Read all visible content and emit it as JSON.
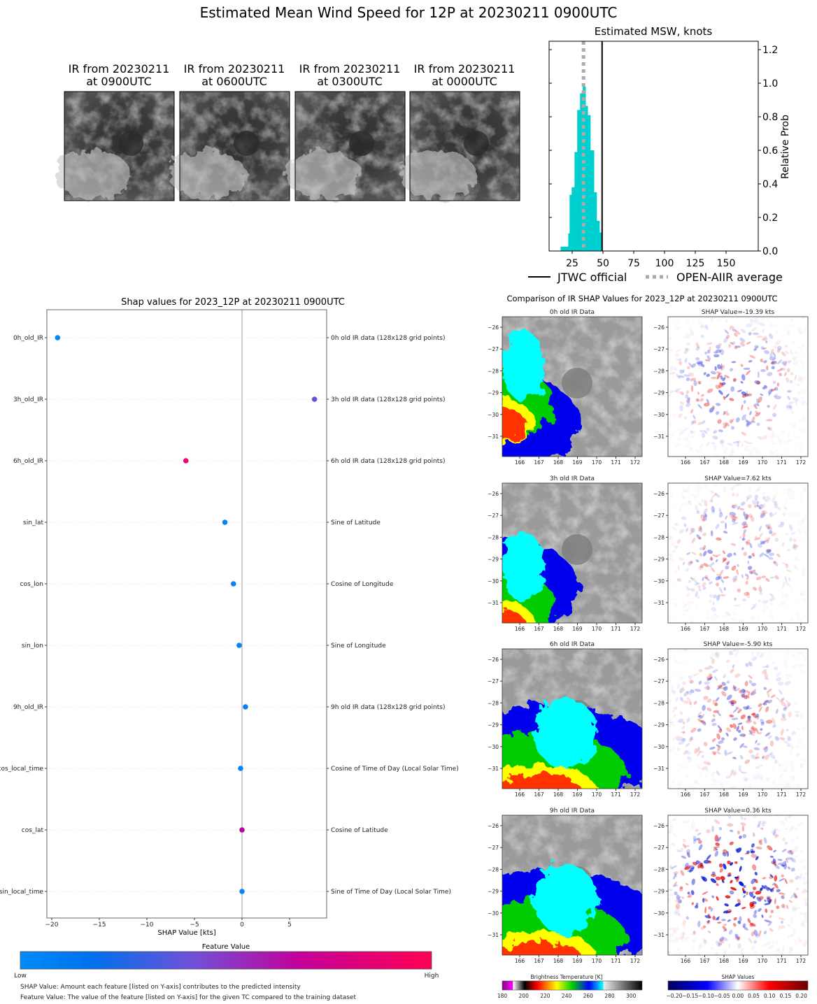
{
  "title": "Estimated Mean Wind Speed for 12P at 20230211 0900UTC",
  "thumbnails": [
    {
      "line1": "IR from 20230211",
      "line2": "at 0900UTC"
    },
    {
      "line1": "IR from 20230211",
      "line2": "at 0600UTC"
    },
    {
      "line1": "IR from 20230211",
      "line2": "at 0300UTC"
    },
    {
      "line1": "IR from 20230211",
      "line2": "at 0000UTC"
    }
  ],
  "chart_data": [
    {
      "type": "bar",
      "title": "Estimated MSW, knots",
      "ylabel": "Relative Prob",
      "xlim": [
        6,
        176
      ],
      "ylim": [
        0,
        1.25
      ],
      "xticks": [
        "25",
        "50",
        "75",
        "100",
        "125",
        "150"
      ],
      "yticks": [
        "0.0",
        "0.2",
        "0.4",
        "0.6",
        "0.8",
        "1.0",
        "1.2"
      ],
      "bar_color": "#00cfcf",
      "bins": [
        {
          "start": 15.6,
          "end": 21.8,
          "value": 0.026
        },
        {
          "start": 21.8,
          "end": 22.9,
          "value": 0.105
        },
        {
          "start": 22.9,
          "end": 24.6,
          "value": 0.335
        },
        {
          "start": 24.6,
          "end": 26.9,
          "value": 0.38
        },
        {
          "start": 26.9,
          "end": 29.1,
          "value": 0.59
        },
        {
          "start": 29.1,
          "end": 31.4,
          "value": 0.84
        },
        {
          "start": 31.4,
          "end": 33.6,
          "value": 0.94
        },
        {
          "start": 33.6,
          "end": 35.9,
          "value": 0.98
        },
        {
          "start": 35.9,
          "end": 37.6,
          "value": 0.865
        },
        {
          "start": 37.6,
          "end": 39.8,
          "value": 0.81
        },
        {
          "start": 39.8,
          "end": 42.7,
          "value": 0.6
        },
        {
          "start": 42.7,
          "end": 44.9,
          "value": 0.35
        },
        {
          "start": 44.9,
          "end": 47.2,
          "value": 0.18
        },
        {
          "start": 47.2,
          "end": 48.9,
          "value": 0.11
        }
      ],
      "jtwc_official": 49.3,
      "open_aiir_average": 34.2,
      "legend": [
        {
          "label": "JTWC official",
          "color": "#000000",
          "style": "solid"
        },
        {
          "label": "OPEN-AIIR average",
          "color": "#aaaaaa",
          "style": "dotted"
        }
      ],
      "legend_placement": "bottom"
    },
    {
      "type": "scatter",
      "title": "Shap values for 2023_12P at 20230211 0900UTC",
      "xlabel": "SHAP Value [kts]",
      "xlim": [
        -20.7,
        8.8
      ],
      "xticks": [
        -20,
        -15,
        -10,
        -5,
        0,
        5
      ],
      "xtick_labels": [
        "−20",
        "−15",
        "−10",
        "−5",
        "0",
        "5"
      ],
      "features": [
        {
          "name": "0h_old_IR",
          "description": "0h old IR data (128x128 grid points)",
          "shap": -19.39,
          "color": "#0586fb"
        },
        {
          "name": "3h_old_IR",
          "description": "3h old IR data (128x128 grid points)",
          "shap": 7.62,
          "color": "#6a50d8"
        },
        {
          "name": "6h_old_IR",
          "description": "6h old IR data (128x128 grid points)",
          "shap": -5.9,
          "color": "#f5036e"
        },
        {
          "name": "sin_lat",
          "description": "Sine of Latitude",
          "shap": -1.8,
          "color": "#0a82f8"
        },
        {
          "name": "cos_lon",
          "description": "Cosine of Longitude",
          "shap": -0.9,
          "color": "#0a82f8"
        },
        {
          "name": "sin_lon",
          "description": "Sine of Longitude",
          "shap": -0.3,
          "color": "#0a82f8"
        },
        {
          "name": "9h_old_IR",
          "description": "9h old IR data (128x128 grid points)",
          "shap": 0.36,
          "color": "#0a7ef2"
        },
        {
          "name": "cos_local_time",
          "description": "Cosine of Time of Day (Local Solar Time)",
          "shap": -0.15,
          "color": "#0a84fa"
        },
        {
          "name": "cos_lat",
          "description": "Cosine of Latitude",
          "shap": 0.0,
          "color": "#b6079f"
        },
        {
          "name": "sin_local_time",
          "description": "Sine of Time of Day (Local Solar Time)",
          "shap": 0.0,
          "color": "#0a84fa"
        }
      ],
      "colorbar": {
        "title": "Feature Value",
        "low": "Low",
        "high": "High",
        "colors": [
          "#008bfb",
          "#0070ec",
          "#7150d8",
          "#c4009a",
          "#ff0052"
        ]
      },
      "notes": [
        "SHAP Value: Amount each feature [listed on Y-axis] contributes to the predicted intensity",
        "Feature Value: The value of the feature [listed on Y-axis] for the given TC compared to the training dataset"
      ]
    },
    {
      "type": "heatmap",
      "title": "Comparison of IR SHAP Values for 2023_12P at 20230211 0900UTC",
      "lat_ticks": [
        "−26",
        "−27",
        "−28",
        "−29",
        "−30",
        "−31"
      ],
      "lon_ticks": [
        "166",
        "167",
        "168",
        "169",
        "170",
        "171",
        "172"
      ],
      "rows": [
        {
          "ir_title": "0h old IR Data",
          "shap_title": "SHAP Value=-19.39 kts",
          "intensity": 0.55
        },
        {
          "ir_title": "3h old IR Data",
          "shap_title": "SHAP Value=7.62 kts",
          "intensity": 0.45
        },
        {
          "ir_title": "6h old IR Data",
          "shap_title": "SHAP Value=-5.90 kts",
          "intensity": 0.5
        },
        {
          "ir_title": "9h old IR Data",
          "shap_title": "SHAP Value=0.36 kts",
          "intensity": 1.0
        }
      ],
      "bt_colorbar": {
        "title": "Brightness Temperature [K]",
        "range": [
          180,
          310
        ],
        "ticks": [
          "180",
          "200",
          "220",
          "240",
          "260",
          "280",
          "300"
        ]
      },
      "shap_colorbar": {
        "title": "SHAP Values",
        "range": [
          -0.22,
          0.22
        ],
        "ticks": [
          "−0.20",
          "−0.15",
          "−0.10",
          "−0.05",
          "0.00",
          "0.05",
          "0.10",
          "0.15",
          "0.20"
        ]
      }
    }
  ]
}
